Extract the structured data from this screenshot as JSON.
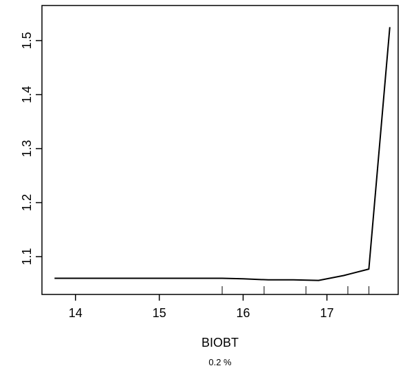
{
  "chart_data": {
    "type": "line",
    "title": "",
    "xlabel": "BIOBT",
    "ylabel": "",
    "subtitle": "0.2 %",
    "xlim": [
      13.6,
      17.85
    ],
    "ylim": [
      1.03,
      1.565
    ],
    "x_ticks": [
      14,
      15,
      16,
      17
    ],
    "x_tick_labels": [
      "14",
      "15",
      "16",
      "17"
    ],
    "y_ticks": [
      1.1,
      1.2,
      1.3,
      1.4,
      1.5
    ],
    "y_tick_labels": [
      "1.1",
      "1.2",
      "1.3",
      "1.4",
      "1.5"
    ],
    "grid": false,
    "series": [
      {
        "x": [
          13.75,
          14.5,
          15.0,
          15.75,
          16.0,
          16.3,
          16.6,
          16.9,
          17.2,
          17.5,
          17.75
        ],
        "y": [
          1.06,
          1.06,
          1.06,
          1.06,
          1.059,
          1.057,
          1.057,
          1.056,
          1.065,
          1.077,
          1.525
        ]
      }
    ],
    "rug_x": [
      15.75,
      16.25,
      16.75,
      17.25,
      17.5
    ],
    "colors": {
      "line": "#000000",
      "axis": "#000000",
      "background": "#ffffff"
    }
  }
}
